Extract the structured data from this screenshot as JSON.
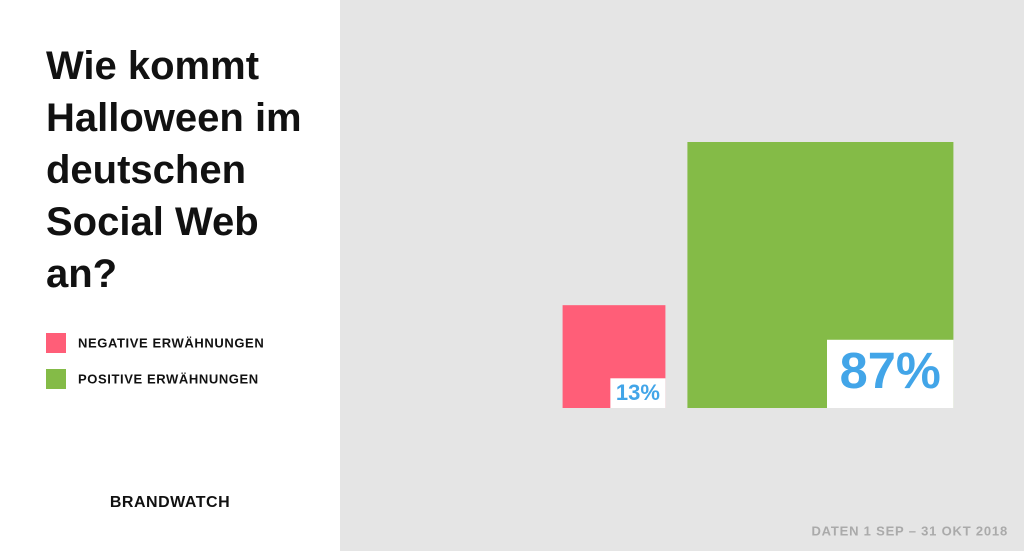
{
  "chart_data": {
    "type": "square-area",
    "title": "Wie kommt Halloween im deutschen Social Web an?",
    "series": [
      {
        "name": "NEGATIVE ERWÄHNUNGEN",
        "color": "#ff5e78",
        "values": [
          13
        ],
        "value_labels": [
          "13%"
        ]
      },
      {
        "name": "POSITIVE ERWÄHNUNGEN",
        "color": "#84bb47",
        "values": [
          87
        ],
        "value_labels": [
          "87%"
        ]
      }
    ],
    "label_color": "#42a5e8",
    "brand": "BRANDWATCH",
    "source": "DATEN 1 SEP – 31 OKT 2018"
  }
}
